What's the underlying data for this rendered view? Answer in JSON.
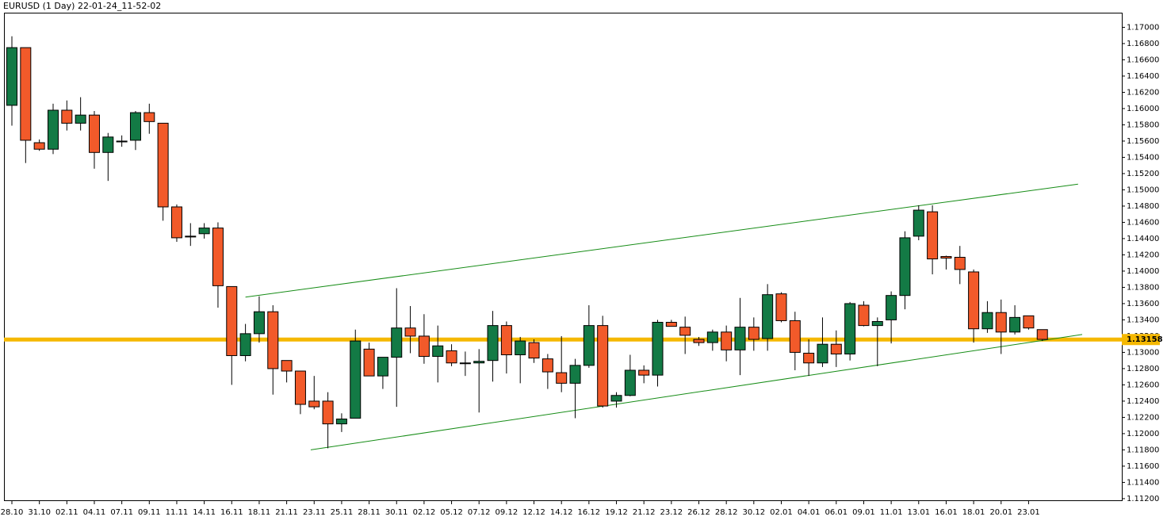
{
  "chart_data": {
    "type": "candlestick",
    "title": "EURUSD (1 Day) 22-01-24_11-52-02",
    "categories": [
      "28.10",
      null,
      "31.10",
      null,
      "02.11",
      null,
      "04.11",
      null,
      "07.11",
      null,
      "09.11",
      null,
      "11.11",
      null,
      "14.11",
      null,
      "16.11",
      null,
      "18.11",
      null,
      "21.11",
      null,
      "23.11",
      null,
      "25.11",
      null,
      "28.11",
      null,
      "30.11",
      null,
      "02.12",
      null,
      "05.12",
      null,
      "07.12",
      null,
      "09.12",
      null,
      "12.12",
      null,
      "14.12",
      null,
      "16.12",
      null,
      "19.12",
      null,
      "21.12",
      null,
      "23.12",
      null,
      "26.12",
      null,
      "28.12",
      null,
      "30.12",
      null,
      "02.01",
      null,
      "04.01",
      null,
      "06.01",
      null,
      "09.01",
      null,
      "11.01",
      null,
      "13.01",
      null,
      "16.01",
      null,
      "18.01",
      null,
      "20.01",
      null,
      "23.01",
      null
    ],
    "open": [
      1.1604,
      1.1675,
      1.1558,
      1.155,
      1.1598,
      1.1582,
      1.1592,
      1.1546,
      1.1559,
      1.1561,
      1.1595,
      1.1582,
      1.1479,
      1.1443,
      1.1446,
      1.1453,
      1.1381,
      1.1296,
      1.1323,
      1.135,
      1.129,
      1.1277,
      1.124,
      1.124,
      1.1212,
      1.1219,
      1.1304,
      1.1271,
      1.1294,
      1.133,
      1.132,
      1.1295,
      1.1302,
      1.1287,
      1.1287,
      1.129,
      1.1333,
      1.1297,
      1.1312,
      1.1292,
      1.1275,
      1.1262,
      1.1284,
      1.1333,
      1.124,
      1.1247,
      1.1278,
      1.1272,
      1.1337,
      1.1331,
      1.1316,
      1.1312,
      1.1325,
      1.1303,
      1.1331,
      1.1317,
      1.1372,
      1.1339,
      1.1299,
      1.1287,
      1.131,
      1.1298,
      1.1358,
      1.1333,
      1.134,
      1.137,
      1.1443,
      1.1473,
      1.1418,
      1.1417,
      1.1399,
      1.1329,
      1.1349,
      1.1325,
      1.1345,
      1.1328
    ],
    "high": [
      1.1689,
      1.1675,
      1.1562,
      1.1606,
      1.161,
      1.1614,
      1.1597,
      1.157,
      1.1567,
      1.1597,
      1.1606,
      1.1582,
      1.1482,
      1.1459,
      1.1459,
      1.146,
      1.1381,
      1.1335,
      1.1369,
      1.1358,
      1.129,
      1.1277,
      1.1271,
      1.1251,
      1.1225,
      1.1328,
      1.1312,
      1.1294,
      1.1379,
      1.1357,
      1.1347,
      1.1333,
      1.131,
      1.1301,
      1.1304,
      1.1351,
      1.1338,
      1.1319,
      1.1316,
      1.1298,
      1.132,
      1.1292,
      1.1358,
      1.1345,
      1.1251,
      1.1297,
      1.1284,
      1.134,
      1.134,
      1.1344,
      1.1319,
      1.1328,
      1.1333,
      1.1367,
      1.1343,
      1.1384,
      1.1374,
      1.135,
      1.1316,
      1.1343,
      1.1327,
      1.1362,
      1.1363,
      1.1343,
      1.1375,
      1.1449,
      1.1481,
      1.1481,
      1.1419,
      1.1431,
      1.1402,
      1.1363,
      1.1365,
      1.1358,
      1.1345,
      1.1328
    ],
    "low": [
      1.1579,
      1.1533,
      1.1548,
      1.1544,
      1.1573,
      1.1573,
      1.1526,
      1.1511,
      1.1553,
      1.1549,
      1.1569,
      1.1462,
      1.1436,
      1.1431,
      1.144,
      1.1355,
      1.126,
      1.1289,
      1.1312,
      1.1248,
      1.1263,
      1.1224,
      1.123,
      1.1182,
      1.1202,
      1.1219,
      1.1271,
      1.1255,
      1.1233,
      1.1299,
      1.1286,
      1.1263,
      1.1283,
      1.1271,
      1.1226,
      1.1264,
      1.1274,
      1.1262,
      1.1287,
      1.1255,
      1.1251,
      1.1219,
      1.1281,
      1.1232,
      1.1232,
      1.1246,
      1.1262,
      1.1258,
      1.1332,
      1.1298,
      1.1308,
      1.1302,
      1.1289,
      1.1272,
      1.1302,
      1.1302,
      1.1337,
      1.1278,
      1.1271,
      1.1282,
      1.1282,
      1.129,
      1.1332,
      1.1283,
      1.1311,
      1.1353,
      1.1438,
      1.1396,
      1.1402,
      1.1384,
      1.1312,
      1.1324,
      1.1298,
      1.1322,
      1.1328,
      1.1314
    ],
    "close": [
      1.1675,
      1.1561,
      1.155,
      1.1598,
      1.1582,
      1.1592,
      1.1546,
      1.1565,
      1.156,
      1.1595,
      1.1584,
      1.1479,
      1.1441,
      1.1442,
      1.1453,
      1.1382,
      1.1296,
      1.1323,
      1.135,
      1.128,
      1.1277,
      1.1236,
      1.1233,
      1.1212,
      1.1218,
      1.1314,
      1.1271,
      1.1294,
      1.133,
      1.132,
      1.1295,
      1.1308,
      1.1287,
      1.1287,
      1.1289,
      1.1333,
      1.1297,
      1.1314,
      1.1293,
      1.1276,
      1.1262,
      1.1284,
      1.1333,
      1.1234,
      1.1247,
      1.1278,
      1.1272,
      1.1337,
      1.1332,
      1.1321,
      1.1312,
      1.1325,
      1.1303,
      1.1331,
      1.1316,
      1.1371,
      1.1339,
      1.13,
      1.1287,
      1.131,
      1.1298,
      1.136,
      1.1333,
      1.1338,
      1.137,
      1.1441,
      1.1475,
      1.1415,
      1.1416,
      1.1402,
      1.1329,
      1.1349,
      1.1325,
      1.1343,
      1.133,
      1.1316
    ],
    "up_color": "#137a45",
    "down_color": "#f25a2a",
    "ylim": [
      1.1117,
      1.1718
    ],
    "yticks": [
      {
        "value": 1.112,
        "label": "1.11200"
      },
      {
        "value": 1.114,
        "label": "1.11400"
      },
      {
        "value": 1.116,
        "label": "1.11600"
      },
      {
        "value": 1.118,
        "label": "1.11800"
      },
      {
        "value": 1.12,
        "label": "1.12000"
      },
      {
        "value": 1.122,
        "label": "1.12200"
      },
      {
        "value": 1.124,
        "label": "1.12400"
      },
      {
        "value": 1.126,
        "label": "1.12600"
      },
      {
        "value": 1.128,
        "label": "1.12800"
      },
      {
        "value": 1.13,
        "label": "1.13000"
      },
      {
        "value": 1.132,
        "label": "1.13200"
      },
      {
        "value": 1.134,
        "label": "1.13400"
      },
      {
        "value": 1.136,
        "label": "1.13600"
      },
      {
        "value": 1.138,
        "label": "1.13800"
      },
      {
        "value": 1.14,
        "label": "1.14000"
      },
      {
        "value": 1.142,
        "label": "1.14200"
      },
      {
        "value": 1.144,
        "label": "1.14400"
      },
      {
        "value": 1.146,
        "label": "1.14600"
      },
      {
        "value": 1.148,
        "label": "1.14800"
      },
      {
        "value": 1.15,
        "label": "1.15000"
      },
      {
        "value": 1.152,
        "label": "1.15200"
      },
      {
        "value": 1.154,
        "label": "1.15400"
      },
      {
        "value": 1.156,
        "label": "1.15600"
      },
      {
        "value": 1.158,
        "label": "1.15800"
      },
      {
        "value": 1.16,
        "label": "1.16000"
      },
      {
        "value": 1.162,
        "label": "1.16200"
      },
      {
        "value": 1.164,
        "label": "1.16400"
      },
      {
        "value": 1.166,
        "label": "1.16600"
      },
      {
        "value": 1.168,
        "label": "1.16800"
      },
      {
        "value": 1.17,
        "label": "1.17000"
      }
    ],
    "price_line": {
      "value": 1.13158,
      "color": "#f5b800"
    },
    "trendlines": [
      {
        "x": [
          17,
          77.6
        ],
        "y": [
          1.1368,
          1.1507
        ],
        "color": "#168c16"
      },
      {
        "x": [
          21.75,
          77.9
        ],
        "y": [
          1.118,
          1.1322
        ],
        "color": "#168c16"
      }
    ]
  }
}
